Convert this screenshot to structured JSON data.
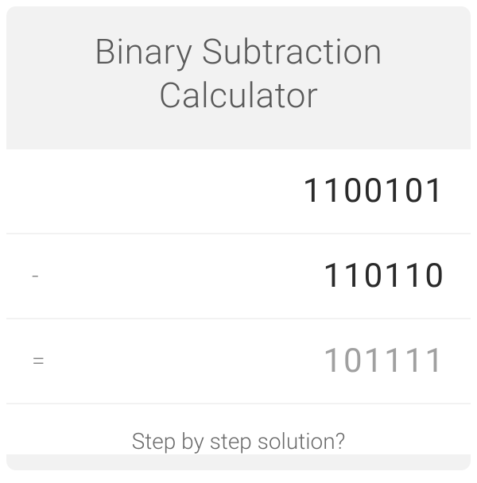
{
  "header": {
    "title": "Binary Subtraction Calculator"
  },
  "rows": {
    "minuend": {
      "operator": "",
      "value": "1100101"
    },
    "subtrahend": {
      "operator": "-",
      "value": "110110"
    },
    "result": {
      "operator": "=",
      "value": "101111"
    }
  },
  "footer": {
    "link": "Step by step solution?"
  },
  "colors": {
    "card_bg": "#f2f2f2",
    "row_bg": "#ffffff",
    "title_color": "#5a5a5a",
    "input_color": "#2a2a2a",
    "result_color": "#a0a0a0",
    "operator_color": "#888888"
  }
}
